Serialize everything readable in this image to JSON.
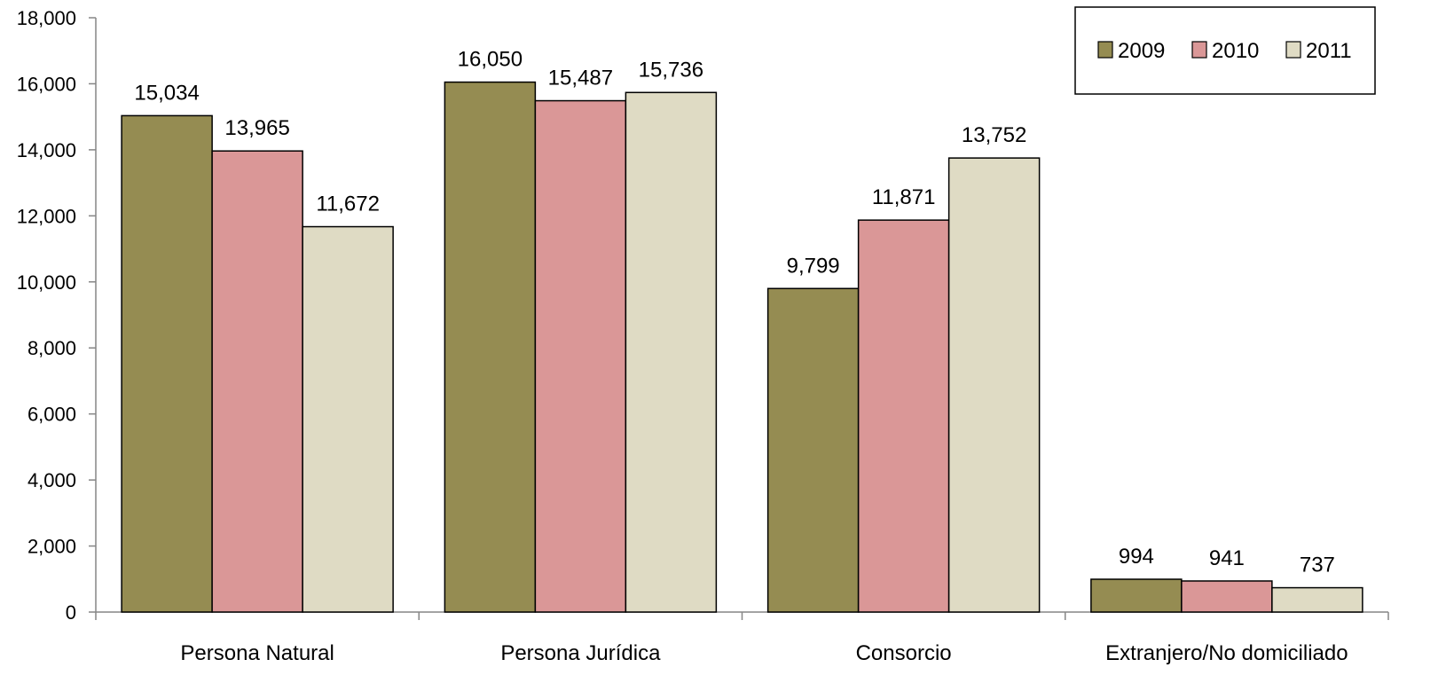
{
  "chart_data": {
    "type": "bar",
    "title": "",
    "xlabel": "",
    "ylabel": "",
    "categories": [
      "Persona Natural",
      "Persona Jurídica",
      "Consorcio",
      "Extranjero/No domiciliado"
    ],
    "series": [
      {
        "name": "2009",
        "color": "#958C52",
        "values": [
          15034,
          16050,
          9799,
          994
        ],
        "labels": [
          "15,034",
          "16,050",
          "9,799",
          "994"
        ]
      },
      {
        "name": "2010",
        "color": "#DA9797",
        "values": [
          13965,
          15487,
          11871,
          941
        ],
        "labels": [
          "13,965",
          "15,487",
          "11,871",
          "941"
        ]
      },
      {
        "name": "2011",
        "color": "#DFDBC4",
        "values": [
          11672,
          15736,
          13752,
          737
        ],
        "labels": [
          "11,672",
          "15,736",
          "13,752",
          "737"
        ]
      }
    ],
    "ylim": [
      0,
      18000
    ],
    "yticks": [
      {
        "value": 0,
        "label": "0"
      },
      {
        "value": 2000,
        "label": "2,000"
      },
      {
        "value": 4000,
        "label": "4,000"
      },
      {
        "value": 6000,
        "label": "6,000"
      },
      {
        "value": 8000,
        "label": "8,000"
      },
      {
        "value": 10000,
        "label": "10,000"
      },
      {
        "value": 12000,
        "label": "12,000"
      },
      {
        "value": 14000,
        "label": "14,000"
      },
      {
        "value": 16000,
        "label": "16,000"
      },
      {
        "value": 18000,
        "label": "18,000"
      }
    ],
    "grid": false,
    "legend_position": "top-right"
  }
}
